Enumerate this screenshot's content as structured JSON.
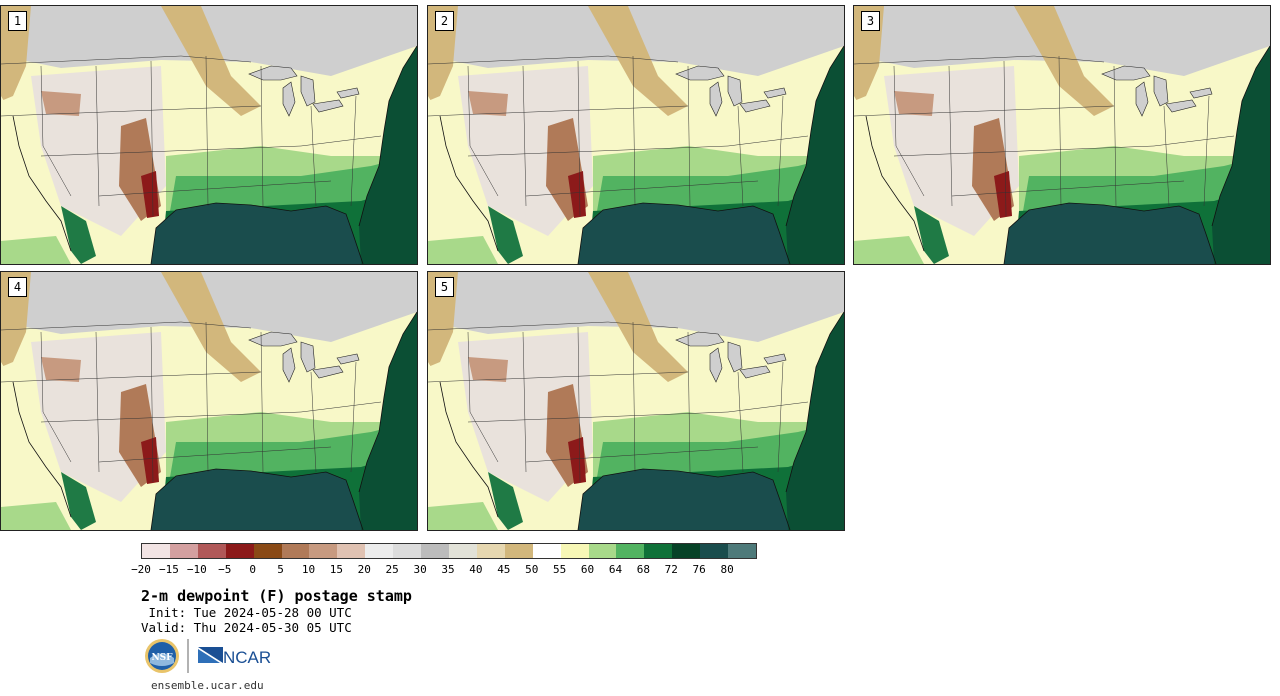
{
  "panels": [
    {
      "label": "1"
    },
    {
      "label": "2"
    },
    {
      "label": "3"
    },
    {
      "label": "4"
    },
    {
      "label": "5"
    }
  ],
  "colorbar": {
    "colors": [
      "#f2e4e4",
      "#d4a0a0",
      "#b05858",
      "#8c1a1a",
      "#8a4a16",
      "#b07a58",
      "#c79a80",
      "#e0c2b2",
      "#ececec",
      "#dcdcdc",
      "#bcbcbc",
      "#e2e2d8",
      "#e6d7b0",
      "#d2b77c",
      "#ffffff",
      "#f7f7b6",
      "#a8d98a",
      "#52b361",
      "#0f7139",
      "#064227",
      "#1a4d4d",
      "#4e7a7a"
    ],
    "tick_labels": [
      "−20",
      "−15",
      "−10",
      "−5",
      "0",
      "5",
      "10",
      "15",
      "20",
      "25",
      "30",
      "35",
      "40",
      "45",
      "50",
      "55",
      "60",
      "64",
      "68",
      "72",
      "76",
      "80"
    ]
  },
  "title": "2-m dewpoint (F) postage stamp",
  "init": " Init: Tue 2024-05-28 00 UTC",
  "valid": "Valid: Thu 2024-05-30 05 UTC",
  "logos": {
    "nsf_text": "NSF",
    "ncar_text": "NCAR"
  },
  "url": "ensemble.ucar.edu"
}
